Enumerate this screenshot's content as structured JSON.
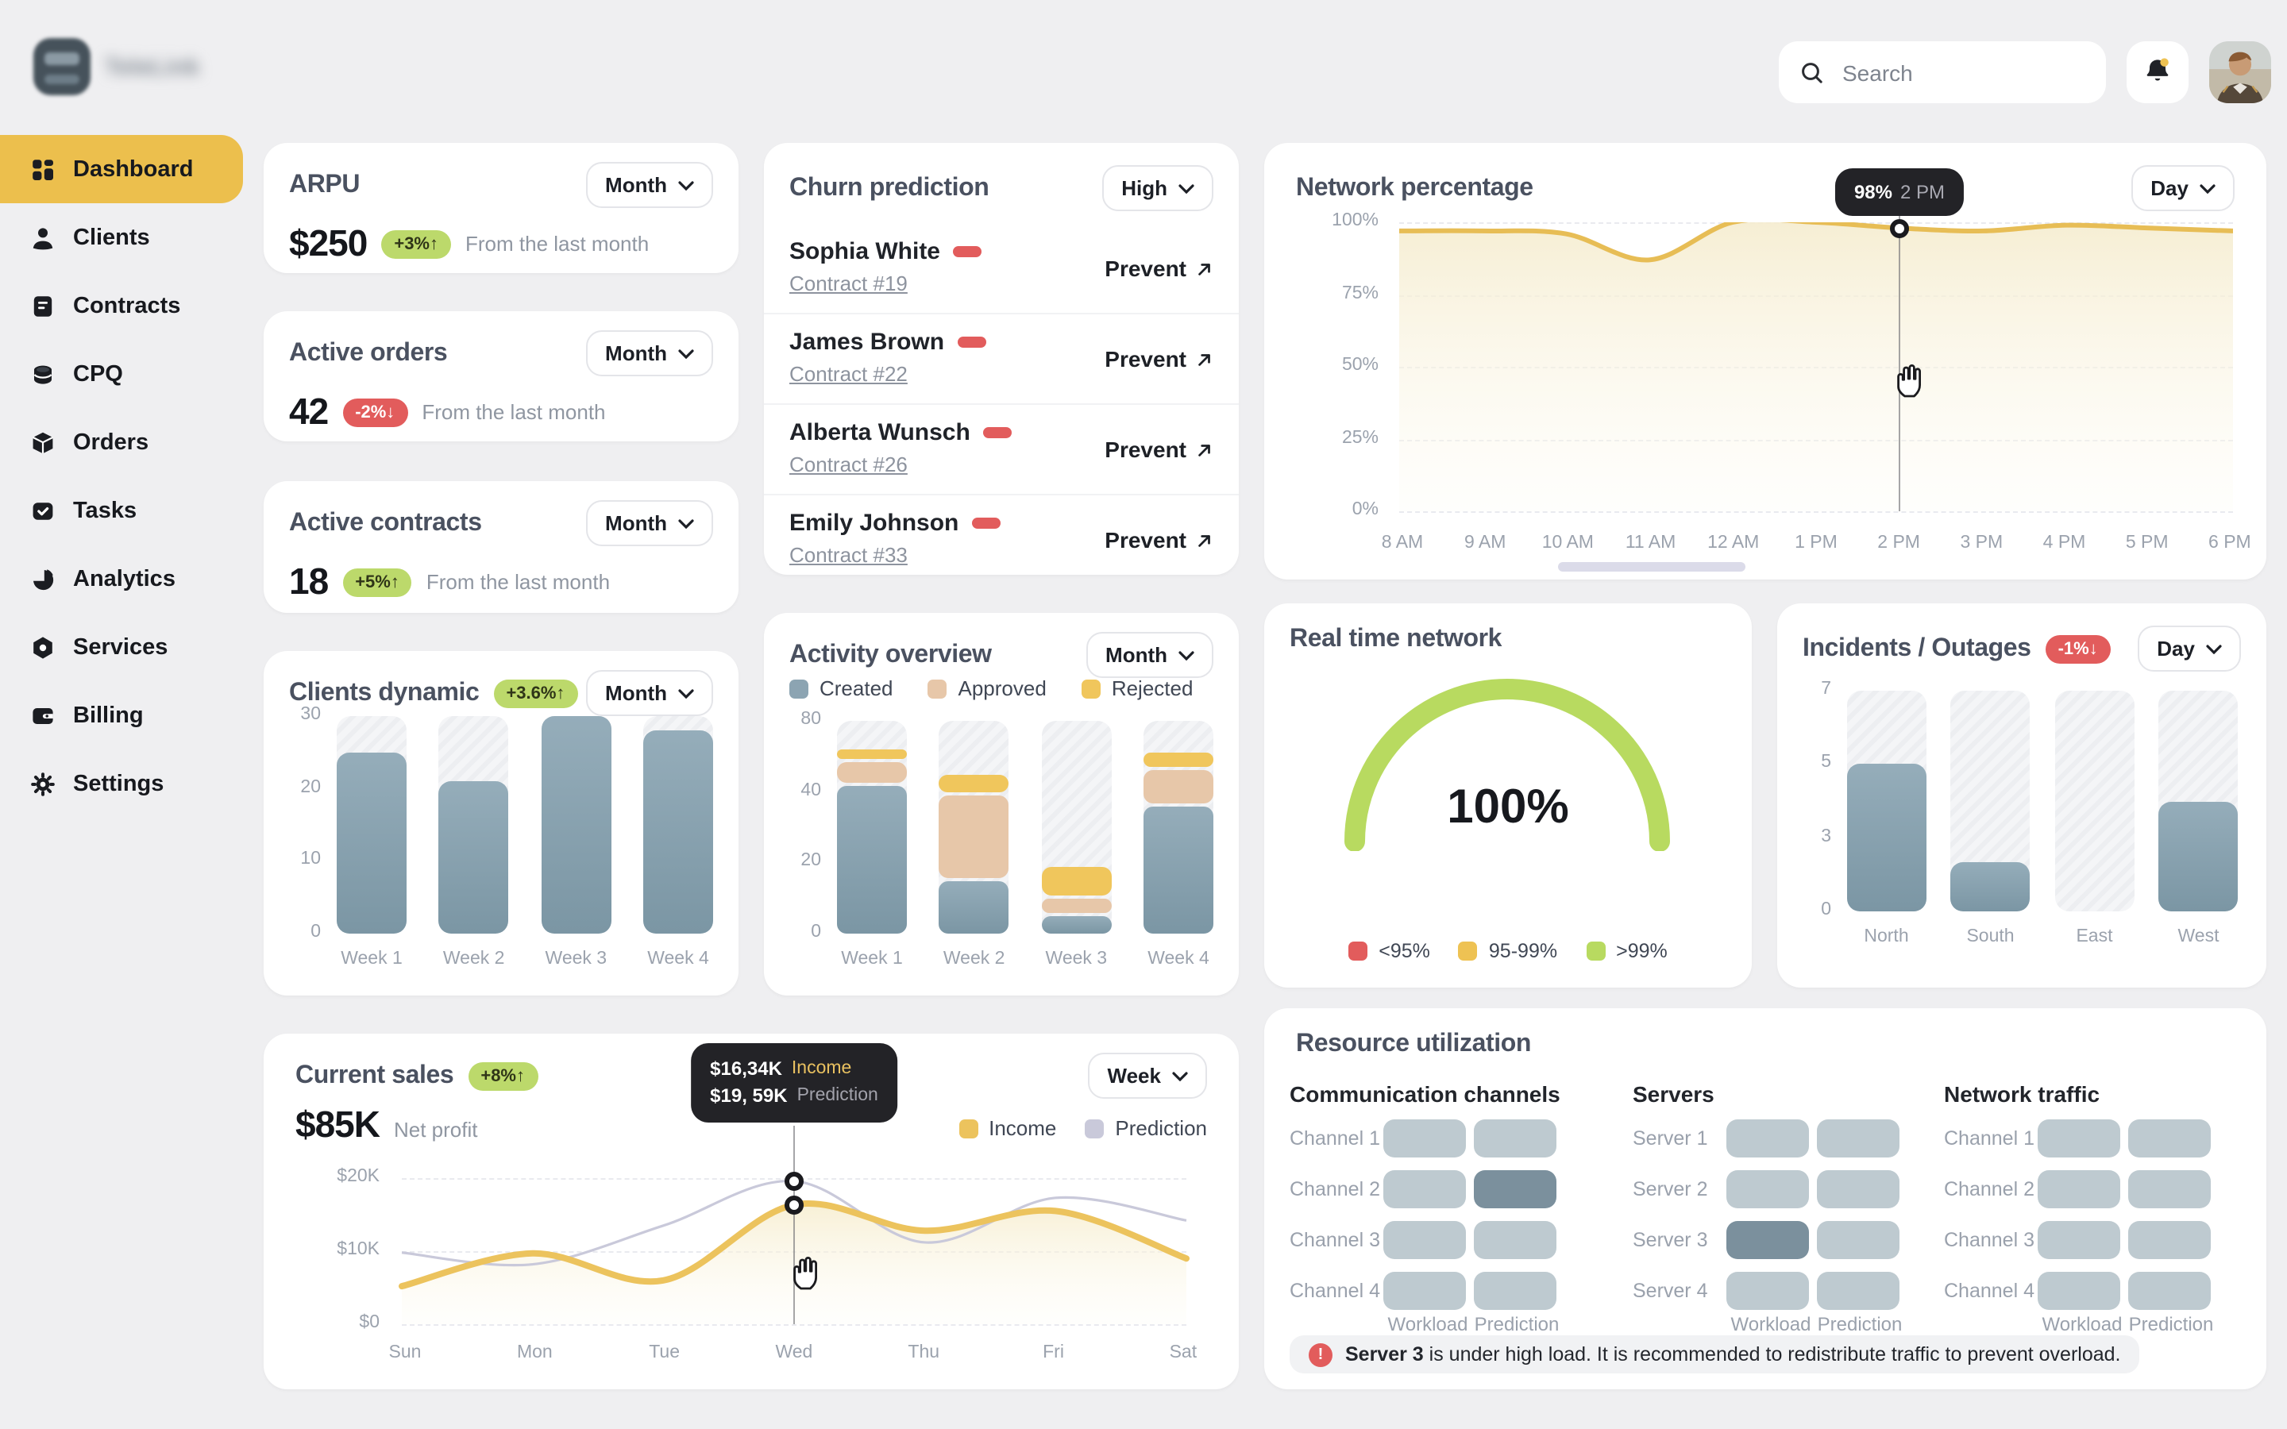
{
  "brand": {
    "name": "TeleLink"
  },
  "topbar": {
    "search_placeholder": "Search"
  },
  "sidebar": {
    "items": [
      {
        "label": "Dashboard",
        "icon": "grid-icon",
        "active": true
      },
      {
        "label": "Clients",
        "icon": "user-icon",
        "active": false
      },
      {
        "label": "Contracts",
        "icon": "contract-icon",
        "active": false
      },
      {
        "label": "CPQ",
        "icon": "coins-icon",
        "active": false
      },
      {
        "label": "Orders",
        "icon": "box-icon",
        "active": false
      },
      {
        "label": "Tasks",
        "icon": "task-icon",
        "active": false
      },
      {
        "label": "Analytics",
        "icon": "pie-icon",
        "active": false
      },
      {
        "label": "Services",
        "icon": "nut-icon",
        "active": false
      },
      {
        "label": "Billing",
        "icon": "wallet-icon",
        "active": false
      },
      {
        "label": "Settings",
        "icon": "gear-icon",
        "active": false
      }
    ]
  },
  "kpis": [
    {
      "title": "ARPU",
      "period": "Month",
      "value": "$250",
      "badge": "+3%↑",
      "trend": "up",
      "note": "From the last month"
    },
    {
      "title": "Active orders",
      "period": "Month",
      "value": "42",
      "badge": "-2%↓",
      "trend": "down",
      "note": "From the last month"
    },
    {
      "title": "Active contracts",
      "period": "Month",
      "value": "18",
      "badge": "+5%↑",
      "trend": "up",
      "note": "From the last month"
    }
  ],
  "clients_dynamic": {
    "title": "Clients dynamic",
    "badge": "+3.6%↑",
    "period": "Month",
    "chart_data": {
      "type": "bar",
      "categories": [
        "Week 1",
        "Week 2",
        "Week 3",
        "Week 4"
      ],
      "values": [
        25,
        21,
        30,
        28
      ],
      "ymax": 30,
      "yticks": [
        "30",
        "20",
        "10",
        "0"
      ],
      "bar_color": "#87a0ae"
    }
  },
  "churn": {
    "title": "Churn prediction",
    "filter": "High",
    "action_label": "Prevent",
    "rows": [
      {
        "name": "Sophia White",
        "contract": "Contract #19"
      },
      {
        "name": "James Brown",
        "contract": "Contract #22"
      },
      {
        "name": "Alberta Wunsch",
        "contract": "Contract #26"
      },
      {
        "name": "Emily Johnson",
        "contract": "Contract #33"
      }
    ]
  },
  "activity": {
    "title": "Activity overview",
    "period": "Month",
    "chart_data": {
      "type": "stacked-bar",
      "categories": [
        "Week 1",
        "Week 2",
        "Week 3",
        "Week 4"
      ],
      "series": [
        {
          "name": "Created",
          "color": "#8ca4b2",
          "values": [
            43,
            15,
            5,
            36
          ]
        },
        {
          "name": "Approved",
          "color": "#e7c7a9",
          "values": [
            14,
            24,
            5,
            16
          ]
        },
        {
          "name": "Rejected",
          "color": "#f0c65c",
          "values": [
            7,
            11,
            9,
            10
          ]
        }
      ],
      "ystops": [
        0,
        20,
        40,
        80
      ],
      "yticks": [
        "80",
        "40",
        "20",
        "0"
      ]
    }
  },
  "network": {
    "title": "Network percentage",
    "period": "Day",
    "chart_data": {
      "type": "area-line",
      "x": [
        "8 AM",
        "9 AM",
        "10 AM",
        "11 AM",
        "12 AM",
        "1 PM",
        "2 PM",
        "3 PM",
        "4 PM",
        "5 PM",
        "6 PM"
      ],
      "values": [
        97,
        97,
        96,
        87,
        100,
        100,
        98,
        97,
        99,
        98,
        97
      ],
      "ymax": 100,
      "yticks": [
        "100%",
        "75%",
        "50%",
        "25%",
        "0%"
      ],
      "line_color": "#e7bd55"
    },
    "tooltip": {
      "value": "98%",
      "label": "2 PM",
      "index": 6
    }
  },
  "realtime": {
    "title": "Real time network",
    "value": "100%",
    "gauge_value": 100,
    "gauge_color": "#b8da60",
    "legend": [
      {
        "label": "<95%",
        "color": "#e25c5c"
      },
      {
        "label": "95-99%",
        "color": "#eec253"
      },
      {
        "label": ">99%",
        "color": "#b8da60"
      }
    ]
  },
  "incidents": {
    "title": "Incidents / Outages",
    "badge": "-1%↓",
    "period": "Day",
    "chart_data": {
      "type": "bar",
      "categories": [
        "North",
        "South",
        "East",
        "West"
      ],
      "values": [
        5,
        2,
        0,
        4
      ],
      "ystops": [
        0,
        3,
        5,
        7
      ],
      "yticks": [
        "7",
        "5",
        "3",
        "0"
      ],
      "bar_color": "#87a0ae"
    }
  },
  "sales": {
    "title": "Current sales",
    "badge": "+8%↑",
    "period": "Week",
    "net_value": "$85K",
    "net_label": "Net profit",
    "chart_data": {
      "type": "line",
      "x": [
        "Sun",
        "Mon",
        "Tue",
        "Wed",
        "Thu",
        "Fri",
        "Sat"
      ],
      "series": [
        {
          "name": "Income",
          "color": "#ecc35d",
          "values": [
            5.2,
            9.7,
            6,
            16.34,
            12.8,
            15.5,
            9
          ]
        },
        {
          "name": "Prediction",
          "color": "#c9c9da",
          "values": [
            9.8,
            8.2,
            13.5,
            19.59,
            11.2,
            17.3,
            14.2
          ]
        }
      ],
      "ymax": 20,
      "yticks": [
        "$20K",
        "$10K",
        "$0"
      ]
    },
    "tooltip": {
      "index": 3,
      "rows": [
        {
          "value": "$16,34K",
          "label": "Income",
          "label_color": "#e9c160"
        },
        {
          "value": "$19, 59K",
          "label": "Prediction",
          "label_color": "#a2a2ab"
        }
      ]
    }
  },
  "resources": {
    "title": "Resource utilization",
    "col_labels": [
      "Workload",
      "Prediction"
    ],
    "groups": [
      {
        "name": "Communication channels",
        "rows": [
          {
            "label": "Channel 1",
            "dark": ""
          },
          {
            "label": "Channel 2",
            "dark": "prediction"
          },
          {
            "label": "Channel 3",
            "dark": ""
          },
          {
            "label": "Channel 4",
            "dark": ""
          }
        ]
      },
      {
        "name": "Servers",
        "rows": [
          {
            "label": "Server 1",
            "dark": ""
          },
          {
            "label": "Server 2",
            "dark": ""
          },
          {
            "label": "Server 3",
            "dark": "workload"
          },
          {
            "label": "Server 4",
            "dark": ""
          }
        ]
      },
      {
        "name": "Network traffic",
        "rows": [
          {
            "label": "Channel 1",
            "dark": ""
          },
          {
            "label": "Channel 2",
            "dark": ""
          },
          {
            "label": "Channel 3",
            "dark": ""
          },
          {
            "label": "Channel 4",
            "dark": ""
          }
        ]
      }
    ],
    "alert": {
      "bold": "Server 3",
      "text": " is under high load. It is recommended to redistribute traffic to prevent overload."
    }
  },
  "colors": {
    "accent": "#ecbf4d",
    "badge_up": "#bcd96b",
    "badge_down": "#e25c5c",
    "bar": "#87a0ae",
    "cell": "#becad0",
    "cell_dark": "#7b909d"
  }
}
